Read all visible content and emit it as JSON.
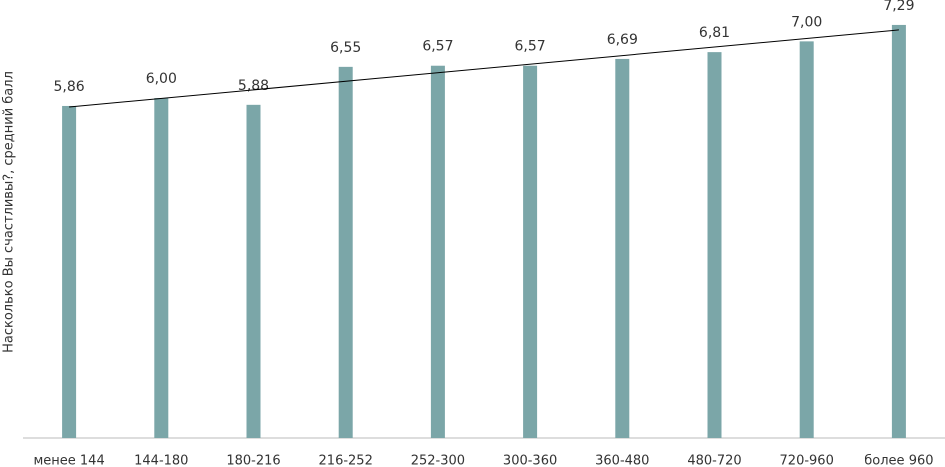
{
  "chart_data": {
    "type": "bar",
    "y_label": "Насколько Вы счастливы?, средний балл",
    "categories": [
      "менее 144",
      "144-180",
      "180-216",
      "216-252",
      "252-300",
      "300-360",
      "360-480",
      "480-720",
      "720-960",
      "более 960"
    ],
    "values": [
      5.86,
      6.0,
      5.88,
      6.55,
      6.57,
      6.57,
      6.69,
      6.81,
      7.0,
      7.29
    ],
    "value_labels": [
      "5,86",
      "6,00",
      "5,88",
      "6,55",
      "6,57",
      "6,57",
      "6,69",
      "6,81",
      "7,00",
      "7,29"
    ],
    "color": "#7ba6a8",
    "ylim": [
      0,
      7.73
    ],
    "trendline": true
  }
}
